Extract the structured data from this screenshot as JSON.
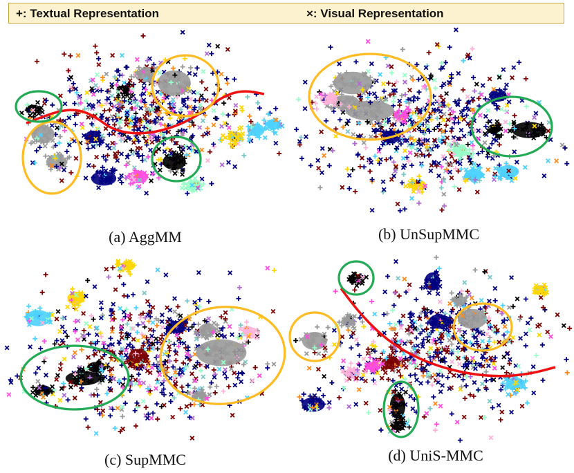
{
  "legend": {
    "textual": "+: Textual Representation",
    "visual": "×: Visual Representation"
  },
  "colors": {
    "palette": [
      "#000080",
      "#9a9a9a",
      "#000000",
      "#7b0000",
      "#ff4de0",
      "#4dd2ff",
      "#ffd700",
      "#98ffc8",
      "#ff8c1a",
      "#b06bd6",
      "#ffb3d9",
      "#7cc7c7"
    ],
    "ellipse_orange": "#ffbb22",
    "ellipse_green": "#22aa55",
    "boundary_red": "#ee1111"
  },
  "chart_data": [
    {
      "type": "scatter",
      "title": "(a) AggMM",
      "caption": "(a) AggMM",
      "marker_legend": {
        "+": "Textual Representation",
        "×": "Visual Representation"
      },
      "axes": "none",
      "annotations": [
        "orange ellipse around gray clusters",
        "green ellipses around black clusters",
        "red separating curve"
      ]
    },
    {
      "type": "scatter",
      "title": "(b) UnSupMMC",
      "caption": "(b) UnSupMMC",
      "marker_legend": {
        "+": "Textual Representation",
        "×": "Visual Representation"
      },
      "axes": "none",
      "annotations": [
        "orange ellipse around gray cluster",
        "green ellipse around black cluster"
      ]
    },
    {
      "type": "scatter",
      "title": "(c) SupMMC",
      "caption": "(c) SupMMC",
      "marker_legend": {
        "+": "Textual Representation",
        "×": "Visual Representation"
      },
      "axes": "none",
      "annotations": [
        "green ellipse around black cluster",
        "orange ellipse around gray cluster"
      ]
    },
    {
      "type": "scatter",
      "title": "(d) UniS-MMC",
      "caption": "(d) UniS-MMC",
      "marker_legend": {
        "+": "Textual Representation",
        "×": "Visual Representation"
      },
      "axes": "none",
      "annotations": [
        "green ellipses around black clusters",
        "orange ellipses around gray clusters",
        "red separating curve"
      ]
    }
  ]
}
